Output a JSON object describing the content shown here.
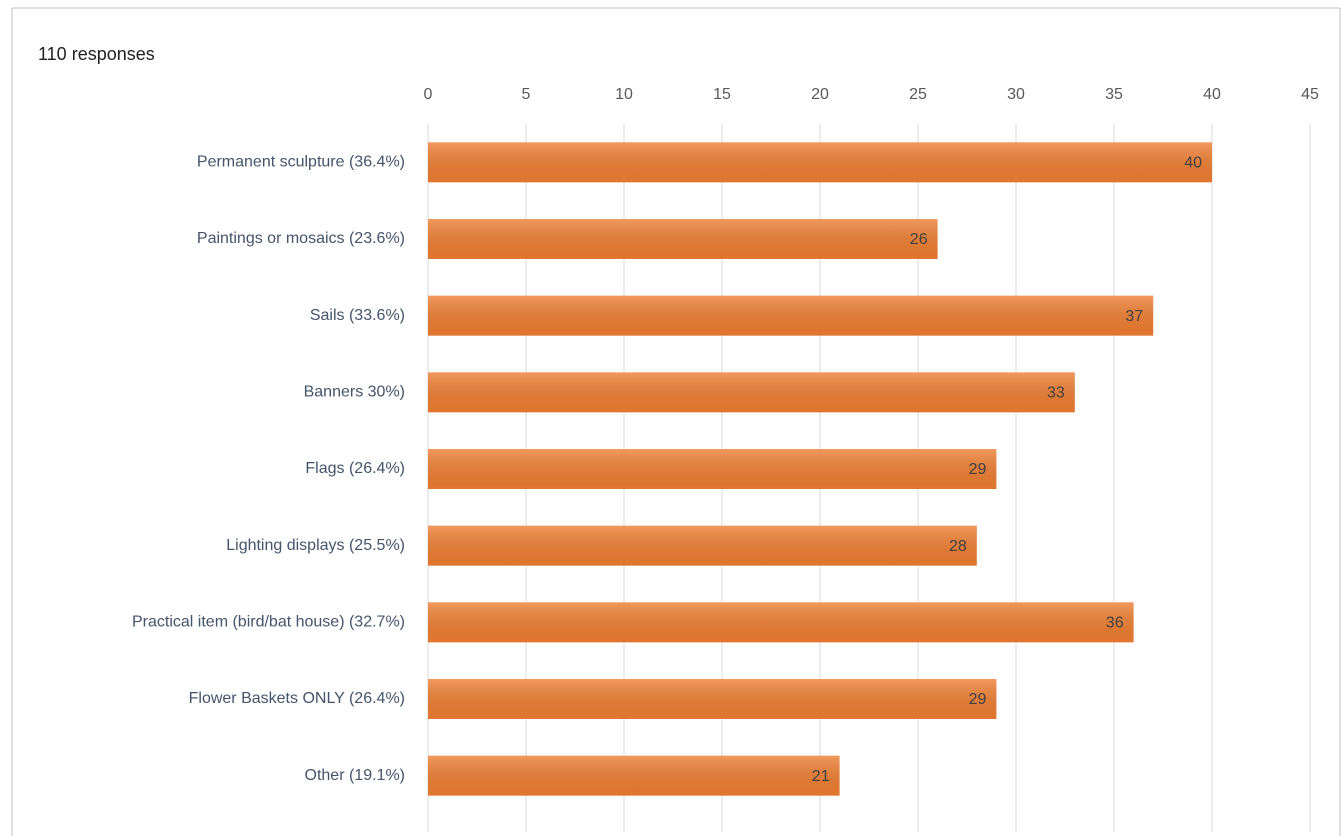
{
  "chart_data": {
    "type": "bar",
    "orientation": "horizontal",
    "title": "110 responses",
    "categories": [
      "Permanent sculpture (36.4%)",
      "Paintings or mosaics (23.6%)",
      "Sails (33.6%)",
      "Banners 30%)",
      "Flags (26.4%)",
      "Lighting displays (25.5%)",
      "Practical item (bird/bat house) (32.7%)",
      "Flower Baskets ONLY (26.4%)",
      "Other (19.1%)"
    ],
    "values": [
      40,
      26,
      37,
      33,
      29,
      28,
      36,
      29,
      21
    ],
    "color": "#ed7d31",
    "xlim": [
      0,
      45
    ],
    "xticks": [
      0,
      5,
      10,
      15,
      20,
      25,
      30,
      35,
      40,
      45
    ],
    "grid": true
  }
}
